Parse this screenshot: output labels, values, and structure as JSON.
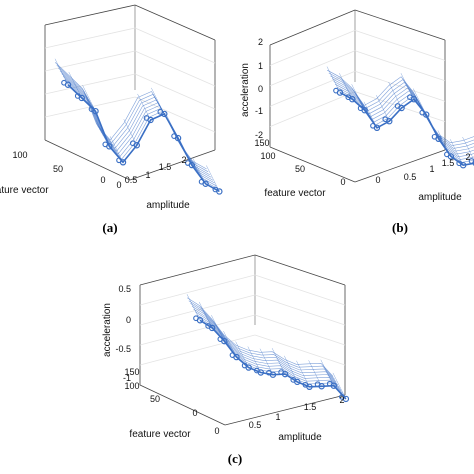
{
  "chart_data": [
    {
      "panel": "(a)",
      "type": "3d-line",
      "xlabel": "amplitude",
      "ylabel": "feature vector",
      "zlabel": "",
      "xticks": [
        "0",
        "0.5",
        "1",
        "1.5",
        "2"
      ],
      "yticks": [
        "0",
        "50",
        "100"
      ],
      "zticks": [],
      "series": [
        {
          "x": [
            0.0,
            0.1,
            0.2,
            0.3,
            0.4,
            0.5,
            0.6,
            0.7,
            0.8,
            0.9,
            1.0,
            1.1
          ],
          "z": [
            0.55,
            0.35,
            0.15,
            -0.45,
            -0.7,
            -0.35,
            0.15,
            0.3,
            -0.1,
            -0.55,
            -0.85,
            -0.95
          ]
        }
      ],
      "color": "#3a6fc4"
    },
    {
      "panel": "(b)",
      "type": "3d-line",
      "xlabel": "amplitude",
      "ylabel": "feature vector",
      "zlabel": "acceleration",
      "xticks": [
        "0",
        "0.5",
        "1",
        "1.5",
        "2"
      ],
      "yticks": [
        "0",
        "50",
        "100",
        "150"
      ],
      "zticks": [
        "-2",
        "-1",
        "0",
        "1",
        "2"
      ],
      "series": [
        {
          "x": [
            0.0,
            0.1,
            0.2,
            0.3,
            0.4,
            0.5,
            0.6,
            0.7,
            0.8,
            0.9,
            1.0,
            1.1,
            1.2
          ],
          "z": [
            0.7,
            0.5,
            0.1,
            -0.6,
            -0.2,
            0.5,
            1.0,
            0.4,
            -0.6,
            -1.3,
            -1.6,
            -1.4,
            -1.1
          ]
        }
      ],
      "color": "#3a6fc4"
    },
    {
      "panel": "(c)",
      "type": "3d-line",
      "xlabel": "amplitude",
      "ylabel": "feature vector",
      "zlabel": "acceleration",
      "xticks": [
        "0",
        "0.5",
        "1",
        "1.5",
        "2"
      ],
      "yticks": [
        "0",
        "50",
        "100",
        "150"
      ],
      "zticks": [
        "-1",
        "-0.5",
        "0",
        "0.5"
      ],
      "series": [
        {
          "x": [
            0.0,
            0.1,
            0.2,
            0.3,
            0.4,
            0.5,
            0.6,
            0.7,
            0.8,
            0.9,
            1.0,
            1.1,
            1.2
          ],
          "z": [
            0.45,
            0.35,
            0.15,
            -0.1,
            -0.25,
            -0.3,
            -0.3,
            -0.25,
            -0.35,
            -0.4,
            -0.35,
            -0.3,
            -0.5
          ]
        }
      ],
      "color": "#3a6fc4"
    }
  ]
}
